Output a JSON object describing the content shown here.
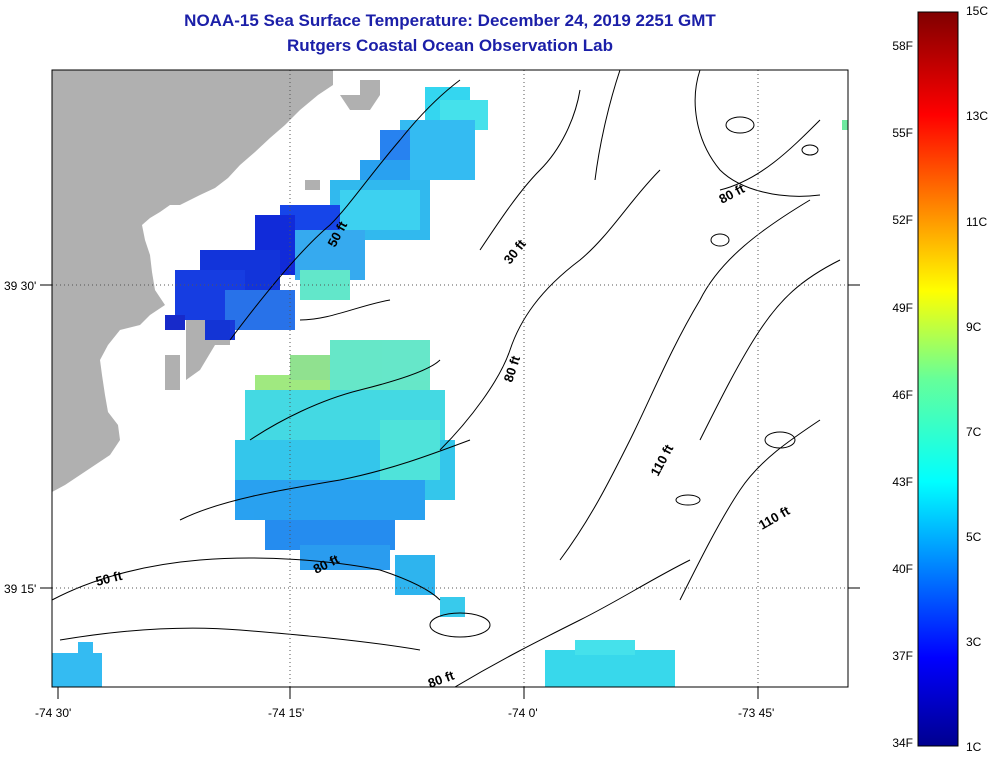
{
  "title": "NOAA-15 Sea Surface Temperature:  December 24, 2019 2251 GMT",
  "subtitle": "Rutgers Coastal Ocean Observation Lab",
  "axes": {
    "x_ticks": [
      "-74 30'",
      "-74 15'",
      "-74 0'",
      "-73 45'"
    ],
    "y_ticks": [
      "39 30'",
      "39 15'"
    ]
  },
  "contour_labels": [
    {
      "text": "50 ft"
    },
    {
      "text": "30 ft"
    },
    {
      "text": "80 ft"
    },
    {
      "text": "80 ft"
    },
    {
      "text": "110 ft"
    },
    {
      "text": "110 ft"
    },
    {
      "text": "50 ft"
    },
    {
      "text": "80 ft"
    },
    {
      "text": "80 ft"
    }
  ],
  "colorbar": {
    "celsius": [
      "15C",
      "13C",
      "11C",
      "9C",
      "7C",
      "5C",
      "3C",
      "1C"
    ],
    "fahrenheit": [
      "58F",
      "55F",
      "52F",
      "49F",
      "46F",
      "43F",
      "40F",
      "37F",
      "34F"
    ]
  },
  "colors": {
    "title": "#1b1fa8",
    "land": "#b0b0b0",
    "ocean": "#ffffff"
  }
}
